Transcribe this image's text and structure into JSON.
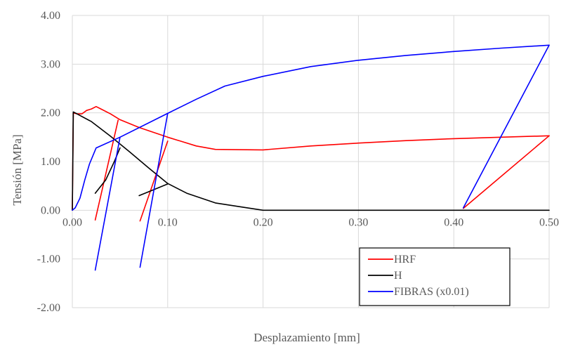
{
  "chart_data": {
    "type": "line",
    "title": "",
    "xlabel": "Desplazamiento  [mm]",
    "ylabel": "Tensión [MPa]",
    "xlim": [
      0,
      0.5
    ],
    "ylim": [
      -2,
      4
    ],
    "xticks": [
      0,
      0.1,
      0.2,
      0.3,
      0.4,
      0.5
    ],
    "xtick_labels": [
      "0.00",
      "0.10",
      "0.20",
      "0.30",
      "0.40",
      "0.50"
    ],
    "yticks": [
      -2,
      -1,
      0,
      1,
      2,
      3,
      4
    ],
    "ytick_labels": [
      "-2.00",
      "-1.00",
      "0.00",
      "1.00",
      "2.00",
      "3.00",
      "4.00"
    ],
    "grid": true,
    "legend_position": "bottom-right",
    "series": [
      {
        "name": "HRF",
        "color": "#ff0000",
        "segments": [
          [
            [
              0,
              0
            ],
            [
              0.001,
              2.0
            ],
            [
              0.005,
              1.98
            ],
            [
              0.01,
              1.98
            ],
            [
              0.015,
              2.05
            ],
            [
              0.02,
              2.08
            ],
            [
              0.025,
              2.13
            ],
            [
              0.03,
              2.08
            ],
            [
              0.04,
              1.98
            ],
            [
              0.05,
              1.86
            ],
            [
              0.07,
              1.7
            ],
            [
              0.1,
              1.5
            ],
            [
              0.13,
              1.32
            ],
            [
              0.15,
              1.25
            ],
            [
              0.2,
              1.24
            ],
            [
              0.25,
              1.32
            ],
            [
              0.3,
              1.38
            ],
            [
              0.35,
              1.43
            ],
            [
              0.4,
              1.47
            ],
            [
              0.45,
              1.5
            ],
            [
              0.5,
              1.53
            ]
          ],
          [
            [
              0.024,
              -0.2
            ],
            [
              0.048,
              1.85
            ]
          ],
          [
            [
              0.071,
              -0.22
            ],
            [
              0.1,
              1.42
            ]
          ],
          [
            [
              0.41,
              0.04
            ],
            [
              0.5,
              1.53
            ]
          ]
        ]
      },
      {
        "name": "H",
        "color": "#000000",
        "segments": [
          [
            [
              0,
              0
            ],
            [
              0.001,
              2.02
            ],
            [
              0.02,
              1.82
            ],
            [
              0.04,
              1.52
            ],
            [
              0.06,
              1.2
            ],
            [
              0.08,
              0.87
            ],
            [
              0.1,
              0.55
            ],
            [
              0.12,
              0.35
            ],
            [
              0.15,
              0.15
            ],
            [
              0.18,
              0.06
            ],
            [
              0.2,
              0.0
            ],
            [
              0.5,
              0.0
            ]
          ],
          [
            [
              0.024,
              0.35
            ],
            [
              0.035,
              0.62
            ],
            [
              0.044,
              1.0
            ],
            [
              0.05,
              1.28
            ]
          ],
          [
            [
              0.07,
              0.3
            ],
            [
              0.085,
              0.42
            ],
            [
              0.1,
              0.54
            ]
          ]
        ]
      },
      {
        "name": "FIBRAS (x0.01)",
        "color": "#0000ff",
        "segments": [
          [
            [
              0,
              0
            ],
            [
              0.003,
              0.05
            ],
            [
              0.008,
              0.25
            ],
            [
              0.013,
              0.62
            ],
            [
              0.018,
              0.95
            ],
            [
              0.025,
              1.28
            ],
            [
              0.05,
              1.5
            ],
            [
              0.1,
              1.99
            ],
            [
              0.13,
              2.28
            ],
            [
              0.16,
              2.55
            ],
            [
              0.2,
              2.75
            ],
            [
              0.25,
              2.95
            ],
            [
              0.3,
              3.08
            ],
            [
              0.35,
              3.18
            ],
            [
              0.4,
              3.26
            ],
            [
              0.45,
              3.33
            ],
            [
              0.5,
              3.39
            ]
          ],
          [
            [
              0.024,
              -1.23
            ],
            [
              0.05,
              1.5
            ]
          ],
          [
            [
              0.071,
              -1.17
            ],
            [
              0.1,
              1.99
            ]
          ],
          [
            [
              0.41,
              0.05
            ],
            [
              0.5,
              3.39
            ]
          ]
        ]
      }
    ]
  }
}
